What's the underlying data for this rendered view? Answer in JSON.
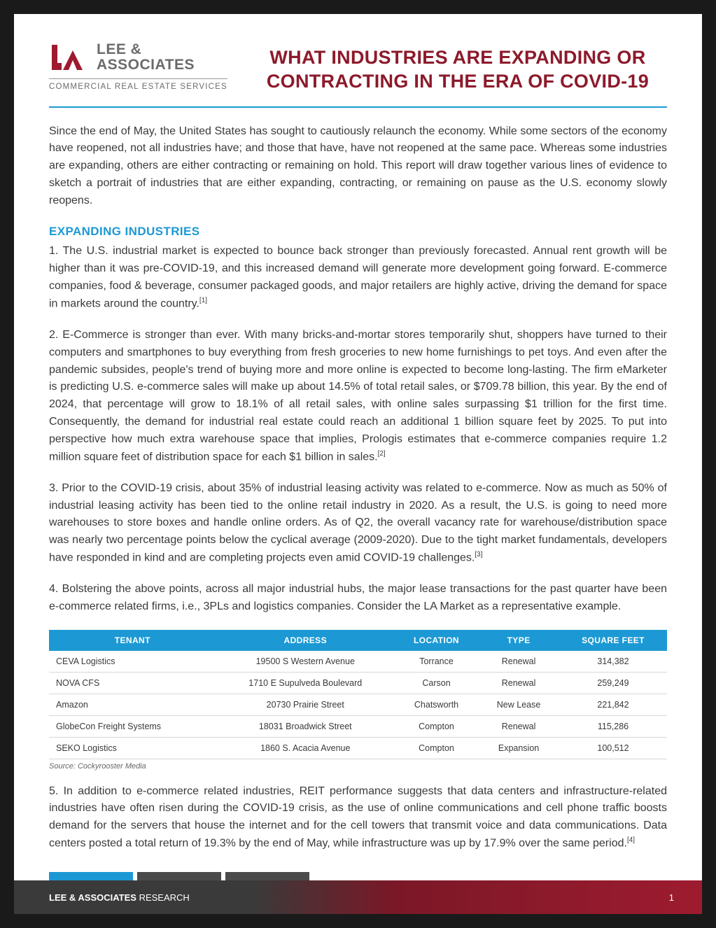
{
  "colors": {
    "brand_red": "#8c1a2b",
    "accent_blue": "#1c99d4",
    "text_gray": "#3a3a3a",
    "logo_gray": "#6b6b6b",
    "page_bg": "#ffffff",
    "outer_bg": "#1a1a1a",
    "table_header_bg": "#1c99d4",
    "row_border": "#d8d8d8",
    "footer_dark": "#3a3a3a",
    "footer_red": "#9e1b2f",
    "strip_blue": "#1c99d4",
    "strip_gray": "#4a4a4a"
  },
  "logo": {
    "line1": "LEE &",
    "line2": "ASSOCIATES",
    "subtitle": "COMMERCIAL REAL ESTATE SERVICES"
  },
  "title_line1": "WHAT INDUSTRIES ARE EXPANDING OR",
  "title_line2": "CONTRACTING IN THE ERA OF COVID-19",
  "intro": "Since the end of May, the United States has sought to cautiously relaunch the economy. While some sectors of the economy have reopened, not all industries have; and those that have, have not reopened at the same pace. Whereas some industries are expanding, others are either contracting or remaining on hold. This report will draw together various lines of evidence to sketch a portrait of industries that are either expanding, contracting, or remaining on pause as the U.S. economy slowly reopens.",
  "section_heading": "EXPANDING INDUSTRIES",
  "p1": "1. The U.S. industrial market is expected to bounce back stronger than previously forecasted. Annual rent growth will be higher than it was pre-COVID-19, and this increased demand will generate more development going forward. E-commerce companies, food & beverage, consumer packaged goods, and major retailers are highly active, driving the demand for space in markets around the country.",
  "p1_ref": "[1]",
  "p2": "2. E-Commerce is stronger than ever. With many bricks-and-mortar stores temporarily shut, shoppers have turned to their computers and smartphones to buy everything from fresh groceries to new home furnishings to pet toys. And even after the pandemic subsides, people's trend of buying more and more online is expected to become long-lasting. The firm eMarketer is predicting U.S. e-commerce sales will make up about 14.5% of total retail sales, or $709.78 billion, this year. By the end of 2024, that percentage will grow to 18.1% of all retail sales, with online sales surpassing $1 trillion for the first time. Consequently, the demand for industrial real estate could reach an additional 1 billion square feet by 2025. To put into perspective how much extra warehouse space that implies, Prologis estimates that e-commerce companies require 1.2 million square feet of distribution space for each $1 billion in sales.",
  "p2_ref": "[2]",
  "p3": "3. Prior to the COVID-19 crisis, about 35% of industrial leasing activity was related to e-commerce. Now as much as 50% of industrial leasing activity has been tied to the online retail industry in 2020. As a result, the U.S. is going to need more warehouses to store boxes and handle online orders. As of Q2, the overall vacancy rate for warehouse/distribution space was nearly two percentage points below the cyclical average (2009-2020). Due to the tight market fundamentals, developers have responded in kind and are completing projects even amid COVID-19 challenges.",
  "p3_ref": "[3]",
  "p4": "4. Bolstering the above points, across all major industrial hubs, the major lease transactions for the past quarter have been e-commerce related firms, i.e., 3PLs and logistics companies. Consider the LA Market as a representative example.",
  "p5": "5. In addition to e-commerce related industries, REIT performance suggests that data centers and infrastructure-related industries have often risen during the COVID-19 crisis, as the use of online communications and cell phone traffic boosts demand for the servers that house the internet and for the cell towers that transmit voice and data communications. Data centers posted a total return of 19.3% by the end of May, while infrastructure was up by 17.9% over the same period.",
  "p5_ref": "[4]",
  "table": {
    "headers": [
      "TENANT",
      "ADDRESS",
      "LOCATION",
      "TYPE",
      "SQUARE FEET"
    ],
    "header_bg": "#1c99d4",
    "rows": [
      [
        "CEVA Logistics",
        "19500 S Western Avenue",
        "Torrance",
        "Renewal",
        "314,382"
      ],
      [
        "NOVA CFS",
        "1710 E Supulveda Boulevard",
        "Carson",
        "Renewal",
        "259,249"
      ],
      [
        "Amazon",
        "20730 Prairie Street",
        "Chatsworth",
        "New Lease",
        "221,842"
      ],
      [
        "GlobeCon Freight Systems",
        "18031 Broadwick Street",
        "Compton",
        "Renewal",
        "115,286"
      ],
      [
        "SEKO Logistics",
        "1860 S. Acacia Avenue",
        "Compton",
        "Expansion",
        "100,512"
      ]
    ],
    "source": "Source: Cockyrooster Media"
  },
  "footer": {
    "brand_bold": "LEE & ASSOCIATES",
    "brand_light": " RESEARCH",
    "page_num": "1",
    "strip_colors": [
      "#1c99d4",
      "#4a4a4a",
      "#4a4a4a"
    ]
  }
}
